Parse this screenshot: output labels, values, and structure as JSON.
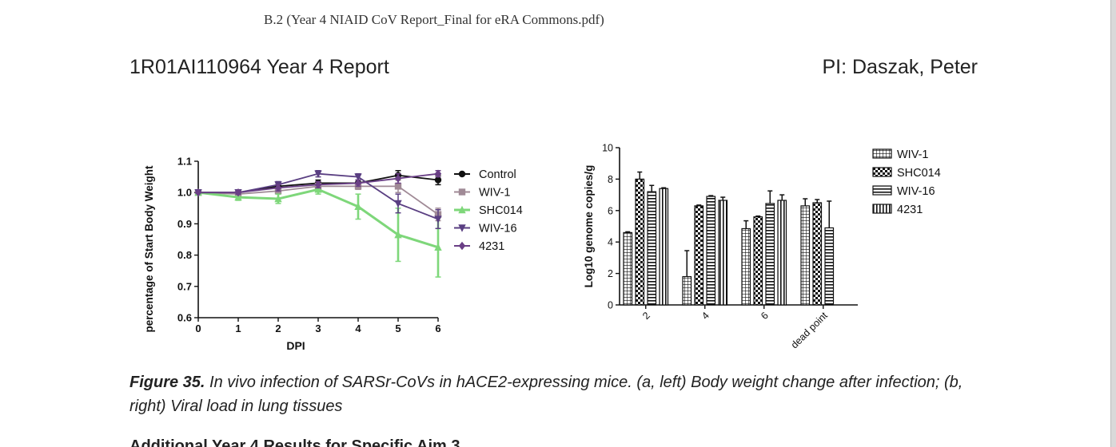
{
  "header": {
    "pdf_name": "B.2 (Year 4 NIAID CoV Report_Final for eRA Commons.pdf)",
    "report_id": "1R01AI110964 Year 4 Report",
    "pi": "PI: Daszak, Peter"
  },
  "caption": {
    "figure_no": "Figure 35.",
    "text": " In vivo infection of SARSr-CoVs in hACE2-expressing mice. (a, left) Body weight change after infection; (b, right) Viral load in lung tissues"
  },
  "next_heading": "Additional Year 4 Results for Specific Aim 3",
  "chart_data": [
    {
      "type": "line",
      "xlabel": "DPI",
      "ylabel": "percentage of Start Body Weight",
      "x": [
        0,
        1,
        2,
        3,
        4,
        5,
        6
      ],
      "xlim": [
        0,
        6
      ],
      "ylim": [
        0.6,
        1.1
      ],
      "yticks": [
        "0.6",
        "0.7",
        "0.8",
        "0.9",
        "1.0",
        "1.1"
      ],
      "xticks": [
        "0",
        "1",
        "2",
        "3",
        "4",
        "5",
        "6"
      ],
      "grid": false,
      "legend": "right",
      "series": [
        {
          "name": "Control",
          "values": [
            1.0,
            1.0,
            1.02,
            1.03,
            1.03,
            1.055,
            1.04
          ],
          "err": [
            0,
            0.005,
            0.01,
            0.01,
            0.01,
            0.015,
            0.015
          ],
          "color": "#111111",
          "marker": "circle"
        },
        {
          "name": "WIV-1",
          "values": [
            1.0,
            0.995,
            1.005,
            1.02,
            1.02,
            1.02,
            0.93
          ],
          "err": [
            0,
            0.005,
            0.01,
            0.01,
            0.01,
            0.02,
            0.02
          ],
          "color": "#a08a96",
          "marker": "square"
        },
        {
          "name": "SHC014",
          "values": [
            1.0,
            0.985,
            0.98,
            1.01,
            0.955,
            0.865,
            0.825
          ],
          "err": [
            0,
            0.01,
            0.015,
            0.015,
            0.04,
            0.085,
            0.095
          ],
          "color": "#7ed77a",
          "marker": "triangle-up"
        },
        {
          "name": "WIV-16",
          "values": [
            1.0,
            1.0,
            1.025,
            1.06,
            1.05,
            0.965,
            0.915
          ],
          "err": [
            0,
            0.005,
            0.01,
            0.01,
            0.01,
            0.03,
            0.03
          ],
          "color": "#5a3f82",
          "marker": "triangle-down"
        },
        {
          "name": "4231",
          "values": [
            1.0,
            1.0,
            1.015,
            1.025,
            1.03,
            1.045,
            1.06
          ],
          "err": [
            0,
            0.005,
            0.01,
            0.01,
            0.01,
            0.015,
            0.01
          ],
          "color": "#6a3f86",
          "marker": "diamond"
        }
      ]
    },
    {
      "type": "bar",
      "xlabel": "",
      "ylabel": "Log10 genome copies/g",
      "categories": [
        "2",
        "4",
        "6",
        "dead point"
      ],
      "ylim": [
        0,
        10
      ],
      "yticks": [
        "0",
        "2",
        "4",
        "6",
        "8",
        "10"
      ],
      "grid": false,
      "legend": "top-right",
      "series": [
        {
          "name": "WIV-1",
          "values": [
            4.6,
            1.8,
            4.85,
            6.3
          ],
          "err": [
            0.05,
            1.65,
            0.5,
            0.45
          ],
          "pattern": "pat-grid"
        },
        {
          "name": "SHC014",
          "values": [
            8.0,
            6.3,
            5.6,
            6.5
          ],
          "err": [
            0.45,
            0.05,
            0.05,
            0.2
          ],
          "pattern": "pat-check"
        },
        {
          "name": "WIV-16",
          "values": [
            7.2,
            6.9,
            6.45,
            4.9
          ],
          "err": [
            0.4,
            0.05,
            0.8,
            1.7
          ],
          "pattern": "pat-hstripe"
        },
        {
          "name": "4231",
          "values": [
            7.4,
            6.65,
            6.65,
            null
          ],
          "err": [
            0.05,
            0.2,
            0.35,
            0
          ],
          "pattern": "pat-vstripe"
        }
      ]
    }
  ]
}
